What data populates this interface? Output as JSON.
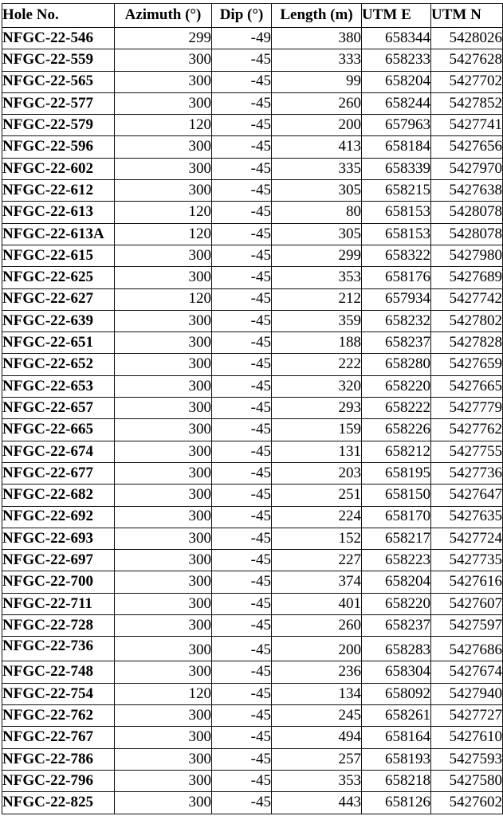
{
  "table": {
    "columns": [
      {
        "key": "hole_no",
        "label": "Hole No."
      },
      {
        "key": "azimuth",
        "label": "Azimuth (°)"
      },
      {
        "key": "dip",
        "label": "Dip (°)"
      },
      {
        "key": "length",
        "label": "Length (m)"
      },
      {
        "key": "utm_e",
        "label": "UTM E"
      },
      {
        "key": "utm_n",
        "label": "UTM N"
      }
    ],
    "rows": [
      [
        "NFGC-22-546",
        "299",
        "-49",
        "380",
        "658344",
        "5428026"
      ],
      [
        "NFGC-22-559",
        "300",
        "-45",
        "333",
        "658233",
        "5427628"
      ],
      [
        "NFGC-22-565",
        "300",
        "-45",
        "99",
        "658204",
        "5427702"
      ],
      [
        "NFGC-22-577",
        "300",
        "-45",
        "260",
        "658244",
        "5427852"
      ],
      [
        "NFGC-22-579",
        "120",
        "-45",
        "200",
        "657963",
        "5427741"
      ],
      [
        "NFGC-22-596",
        "300",
        "-45",
        "413",
        "658184",
        "5427656"
      ],
      [
        "NFGC-22-602",
        "300",
        "-45",
        "335",
        "658339",
        "5427970"
      ],
      [
        "NFGC-22-612",
        "300",
        "-45",
        "305",
        "658215",
        "5427638"
      ],
      [
        "NFGC-22-613",
        "120",
        "-45",
        "80",
        "658153",
        "5428078"
      ],
      [
        "NFGC-22-613A",
        "120",
        "-45",
        "305",
        "658153",
        "5428078"
      ],
      [
        "NFGC-22-615",
        "300",
        "-45",
        "299",
        "658322",
        "5427980"
      ],
      [
        "NFGC-22-625",
        "300",
        "-45",
        "353",
        "658176",
        "5427689"
      ],
      [
        "NFGC-22-627",
        "120",
        "-45",
        "212",
        "657934",
        "5427742"
      ],
      [
        "NFGC-22-639",
        "300",
        "-45",
        "359",
        "658232",
        "5427802"
      ],
      [
        "NFGC-22-651",
        "300",
        "-45",
        "188",
        "658237",
        "5427828"
      ],
      [
        "NFGC-22-652",
        "300",
        "-45",
        "222",
        "658280",
        "5427659"
      ],
      [
        "NFGC-22-653",
        "300",
        "-45",
        "320",
        "658220",
        "5427665"
      ],
      [
        "NFGC-22-657",
        "300",
        "-45",
        "293",
        "658222",
        "5427779"
      ],
      [
        "NFGC-22-665",
        "300",
        "-45",
        "159",
        "658226",
        "5427762"
      ],
      [
        "NFGC-22-674",
        "300",
        "-45",
        "131",
        "658212",
        "5427755"
      ],
      [
        "NFGC-22-677",
        "300",
        "-45",
        "203",
        "658195",
        "5427736"
      ],
      [
        "NFGC-22-682",
        "300",
        "-45",
        "251",
        "658150",
        "5427647"
      ],
      [
        "NFGC-22-692",
        "300",
        "-45",
        "224",
        "658170",
        "5427635"
      ],
      [
        "NFGC-22-693",
        "300",
        "-45",
        "152",
        "658217",
        "5427724"
      ],
      [
        "NFGC-22-697",
        "300",
        "-45",
        "227",
        "658223",
        "5427735"
      ],
      [
        "NFGC-22-700",
        "300",
        "-45",
        "374",
        "658204",
        "5427616"
      ],
      [
        "NFGC-22-711",
        "300",
        "-45",
        "401",
        "658220",
        "5427607"
      ],
      [
        "NFGC-22-728",
        "300",
        "-45",
        "260",
        "658237",
        "5427597"
      ],
      [
        "NFGC-22-736",
        "300",
        "-45",
        "200",
        "658283",
        "5427686"
      ],
      [
        "NFGC-22-748",
        "300",
        "-45",
        "236",
        "658304",
        "5427674"
      ],
      [
        "NFGC-22-754",
        "120",
        "-45",
        "134",
        "658092",
        "5427940"
      ],
      [
        "NFGC-22-762",
        "300",
        "-45",
        "245",
        "658261",
        "5427727"
      ],
      [
        "NFGC-22-767",
        "300",
        "-45",
        "494",
        "658164",
        "5427610"
      ],
      [
        "NFGC-22-786",
        "300",
        "-45",
        "257",
        "658193",
        "5427593"
      ],
      [
        "NFGC-22-796",
        "300",
        "-45",
        "353",
        "658218",
        "5427580"
      ],
      [
        "NFGC-22-825",
        "300",
        "-45",
        "443",
        "658126",
        "5427602"
      ]
    ]
  }
}
